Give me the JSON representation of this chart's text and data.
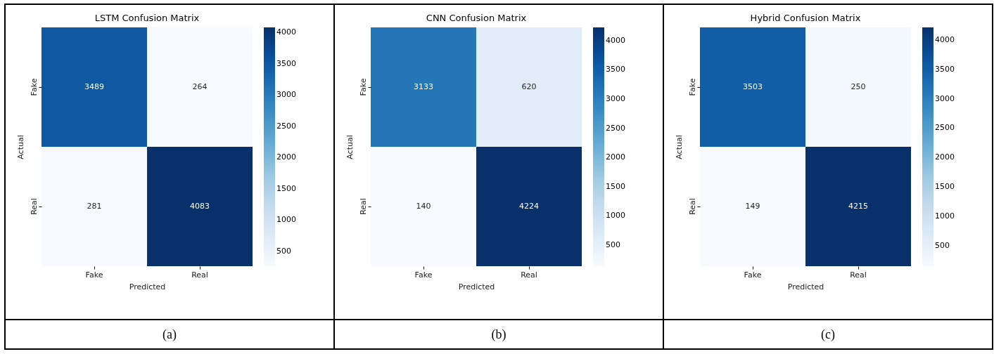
{
  "chart_data": [
    {
      "type": "heatmap",
      "title": "LSTM Confusion Matrix",
      "xlabel": "Predicted",
      "ylabel": "Actual",
      "categories": [
        "Fake",
        "Real"
      ],
      "y_categories": [
        "Fake",
        "Real"
      ],
      "cells": [
        [
          3489,
          264
        ],
        [
          281,
          4083
        ]
      ],
      "clim": [
        264,
        4083
      ],
      "cticks": [
        500,
        1000,
        1500,
        2000,
        2500,
        3000,
        3500,
        4000
      ],
      "data_labels": true,
      "annotations": [
        "(a)"
      ]
    },
    {
      "type": "heatmap",
      "title": "CNN Confusion Matrix",
      "xlabel": "Predicted",
      "ylabel": "Actual",
      "categories": [
        "Fake",
        "Real"
      ],
      "y_categories": [
        "Fake",
        "Real"
      ],
      "cells": [
        [
          3133,
          620
        ],
        [
          140,
          4224
        ]
      ],
      "clim": [
        140,
        4224
      ],
      "cticks": [
        500,
        1000,
        1500,
        2000,
        2500,
        3000,
        3500,
        4000
      ],
      "data_labels": true,
      "annotations": [
        "(b)"
      ]
    },
    {
      "type": "heatmap",
      "title": "Hybrid Confusion Matrix",
      "xlabel": "Predicted",
      "ylabel": "Actual",
      "categories": [
        "Fake",
        "Real"
      ],
      "y_categories": [
        "Fake",
        "Real"
      ],
      "cells": [
        [
          3503,
          250
        ],
        [
          149,
          4215
        ]
      ],
      "clim": [
        149,
        4215
      ],
      "cticks": [
        500,
        1000,
        1500,
        2000,
        2500,
        3000,
        3500,
        4000
      ],
      "data_labels": true,
      "annotations": [
        "(c)"
      ]
    }
  ]
}
